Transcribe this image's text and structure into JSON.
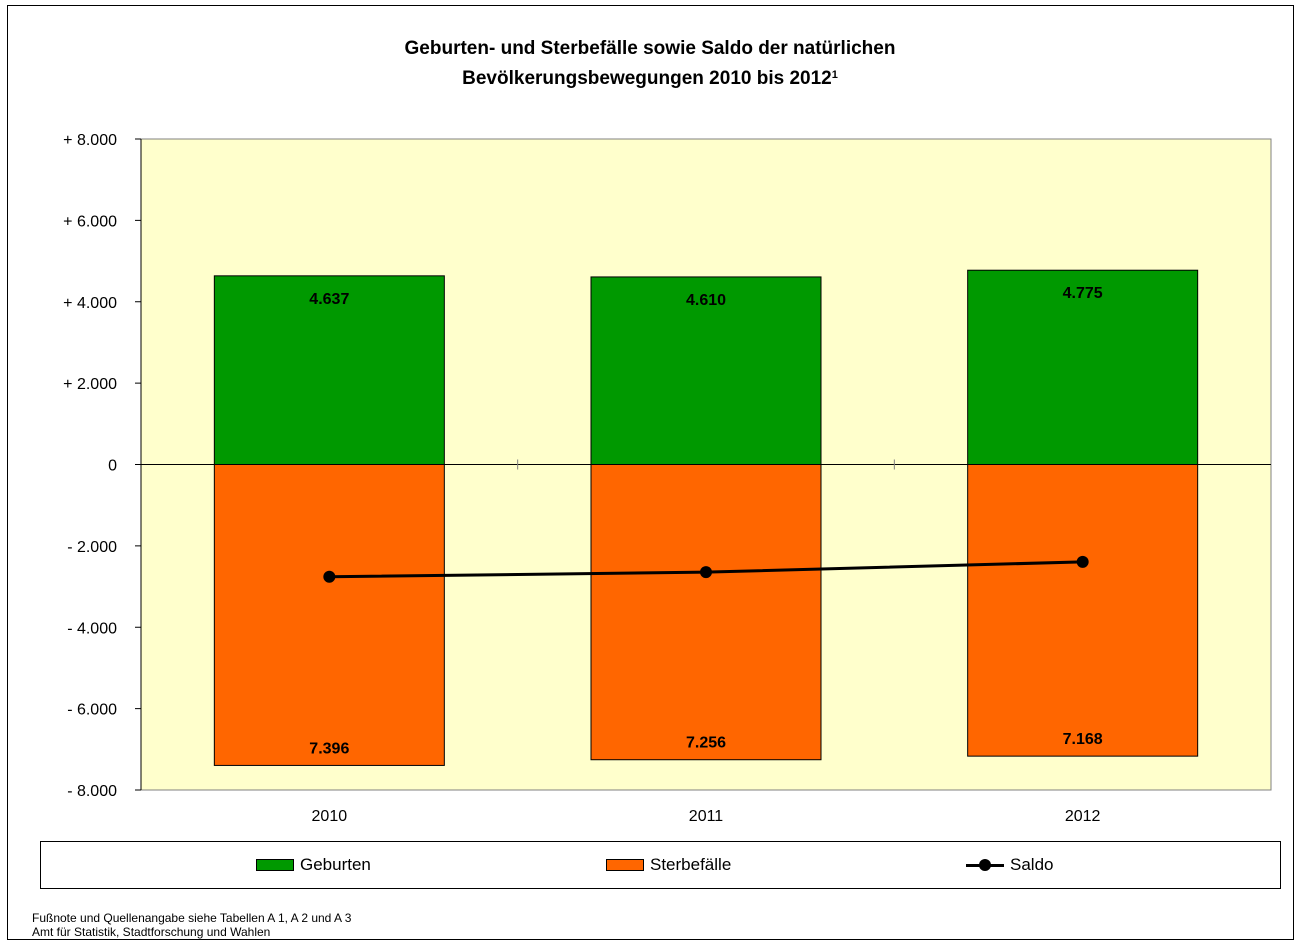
{
  "chart_data": {
    "type": "bar",
    "title_line1": "Geburten- und Sterbefälle sowie Saldo der natürlichen",
    "title_line2": "Bevölkerungsbewegungen 2010 bis 2012",
    "title_superscript": "1",
    "categories": [
      "2010",
      "2011",
      "2012"
    ],
    "series": [
      {
        "name": "Geburten",
        "type": "bar",
        "values": [
          4637,
          4610,
          4775
        ],
        "labels": [
          "4.637",
          "4.610",
          "4.775"
        ],
        "color": "#009900"
      },
      {
        "name": "Sterbefälle",
        "type": "bar",
        "values": [
          -7396,
          -7256,
          -7168
        ],
        "labels": [
          "7.396",
          "7.256",
          "7.168"
        ],
        "color": "#ff6600"
      },
      {
        "name": "Saldo",
        "type": "line",
        "values": [
          -2759,
          -2646,
          -2393
        ],
        "color": "#000000"
      }
    ],
    "yticks": [
      {
        "value": 8000,
        "label": "+ 8.000"
      },
      {
        "value": 6000,
        "label": "+ 6.000"
      },
      {
        "value": 4000,
        "label": "+ 4.000"
      },
      {
        "value": 2000,
        "label": "+ 2.000"
      },
      {
        "value": 0,
        "label": "0"
      },
      {
        "value": -2000,
        "label": "- 2.000"
      },
      {
        "value": -4000,
        "label": "- 4.000"
      },
      {
        "value": -6000,
        "label": "- 6.000"
      },
      {
        "value": -8000,
        "label": "- 8.000"
      }
    ],
    "ylim": [
      -8000,
      8000
    ],
    "plot_background": "#ffffcc",
    "grid": false,
    "legend_position": "bottom"
  },
  "footnotes": [
    "Fußnote und Quellenangabe siehe Tabellen A 1, A 2 und A 3",
    "Amt für Statistik, Stadtforschung und Wahlen"
  ]
}
